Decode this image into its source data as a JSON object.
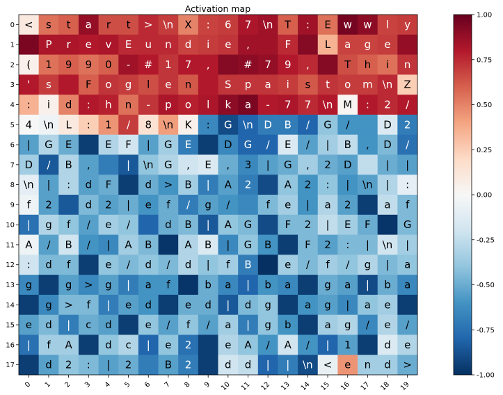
{
  "chart_data": {
    "type": "heatmap",
    "title": "Activation map",
    "xlabel": "",
    "ylabel": "",
    "x_ticks": [
      "0",
      "1",
      "2",
      "3",
      "4",
      "5",
      "6",
      "7",
      "8",
      "9",
      "10",
      "11",
      "12",
      "13",
      "14",
      "15",
      "16",
      "17",
      "18",
      "19"
    ],
    "y_ticks": [
      "0",
      "1",
      "2",
      "3",
      "4",
      "5",
      "6",
      "7",
      "8",
      "9",
      "10",
      "11",
      "12",
      "13",
      "14",
      "15",
      "16",
      "17"
    ],
    "x_tick_rotation_deg": 45,
    "colormap": "RdBu_r",
    "colorbar": {
      "vmin": -1.0,
      "vmax": 1.0,
      "ticks": [
        "1.00",
        "0.75",
        "0.50",
        "0.25",
        "0.00",
        "-0.25",
        "-0.50",
        "-0.75",
        "-1.00"
      ]
    },
    "cell_labels": [
      [
        "<",
        "s",
        "t",
        "a",
        "r",
        "t",
        ">",
        "\\n",
        "X",
        ":",
        "6",
        "7",
        "\\n",
        "T",
        ":",
        "E",
        "w",
        "w",
        "l",
        "y"
      ],
      [
        "",
        "P",
        "r",
        "e",
        "v",
        "E",
        "u",
        "n",
        "d",
        "i",
        "e",
        ",",
        "",
        "F",
        "",
        "L",
        "a",
        "g",
        "e",
        ""
      ],
      [
        "(",
        "1",
        "9",
        "9",
        "0",
        "-",
        "#",
        "1",
        "7",
        ",",
        "",
        "#",
        "7",
        "9",
        ",",
        "",
        "T",
        "h",
        "i",
        "n"
      ],
      [
        "'",
        "s",
        "",
        "F",
        "o",
        "g",
        "l",
        "e",
        "n",
        "",
        "S",
        "p",
        "a",
        "i",
        "s",
        "t",
        "o",
        "m",
        "\\n",
        "Z"
      ],
      [
        ":",
        "i",
        "d",
        ":",
        "h",
        "n",
        "-",
        "p",
        "o",
        "l",
        "k",
        "a",
        "-",
        "7",
        "7",
        "\\n",
        "M",
        ":",
        "2",
        "/"
      ],
      [
        "4",
        "\\n",
        "L",
        ":",
        "1",
        "/",
        "8",
        "\\n",
        "K",
        ":",
        "G",
        "\\n",
        "D",
        "B",
        "/",
        "G",
        "/",
        "",
        "D",
        "2"
      ],
      [
        "|",
        "G",
        "E",
        "",
        "E",
        "F",
        "|",
        "G",
        "E",
        "",
        "D",
        "G",
        "/",
        "E",
        "/",
        "|",
        "B",
        ",",
        "D",
        "/"
      ],
      [
        "D",
        "/",
        "B",
        ",",
        "",
        "|",
        "\\n",
        "G",
        ",",
        "E",
        ",",
        "3",
        "|",
        "G",
        ",",
        "2",
        "D",
        "",
        "|",
        "|"
      ],
      [
        "\\n",
        "|",
        ":",
        "d",
        "F",
        "",
        "d",
        ">",
        "B",
        "|",
        "A",
        "2",
        "",
        "A",
        "2",
        ":",
        "|",
        "\\n",
        "|",
        ":"
      ],
      [
        "f",
        "2",
        "",
        "d",
        "2",
        "|",
        "e",
        "f",
        "/",
        "g",
        "/",
        "",
        "f",
        "e",
        "|",
        "a",
        "2",
        "",
        "a",
        "f"
      ],
      [
        "|",
        "g",
        "f",
        "/",
        "e",
        "/",
        "",
        "d",
        "B",
        "|",
        "A",
        "G",
        "",
        "F",
        "2",
        "|",
        "E",
        "F",
        "",
        "G"
      ],
      [
        "A",
        "/",
        "B",
        "/",
        "|",
        "A",
        "B",
        "",
        "A",
        "B",
        "|",
        "G",
        "B",
        "",
        "F",
        "2",
        ":",
        "|",
        "\\n",
        "|"
      ],
      [
        ":",
        "d",
        "f",
        "",
        "e",
        "/",
        "d",
        "/",
        "d",
        "|",
        "f",
        "B",
        "",
        "e",
        "/",
        "f",
        "/",
        "g",
        "|",
        "a"
      ],
      [
        "g",
        "",
        "g",
        ">",
        "g",
        "|",
        "a",
        "f",
        "",
        "b",
        "a",
        "|",
        "b",
        "a",
        "",
        "g",
        "a",
        "|",
        "b",
        "a"
      ],
      [
        "",
        "g",
        ">",
        "f",
        "|",
        "e",
        "d",
        "",
        "e",
        "d",
        "|",
        "d",
        "g",
        "",
        "a",
        "g",
        "|",
        "a",
        "e",
        ""
      ],
      [
        "e",
        "d",
        "|",
        "c",
        "d",
        "",
        "e",
        "/",
        "f",
        "/",
        "a",
        "|",
        "g",
        "b",
        "",
        "a",
        "g",
        "/",
        "e",
        "/"
      ],
      [
        "|",
        "f",
        "A",
        "",
        "d",
        "c",
        "|",
        "e",
        "2",
        "",
        "e",
        "A",
        "/",
        "A",
        "/",
        "|",
        "1",
        "",
        "d",
        "e"
      ],
      [
        "",
        "d",
        "2",
        ":",
        "|",
        "2",
        "",
        "B",
        "2",
        "",
        "d",
        "d",
        "|",
        "|",
        "\\n",
        "<",
        "e",
        "n",
        "d",
        ">"
      ]
    ],
    "values": [
      [
        0.1,
        0.55,
        0.6,
        0.88,
        0.65,
        0.65,
        0.75,
        0.7,
        0.5,
        0.68,
        0.7,
        0.82,
        0.85,
        0.6,
        0.85,
        0.55,
        0.96,
        0.9,
        0.68,
        0.7
      ],
      [
        0.95,
        0.82,
        0.82,
        0.8,
        0.82,
        0.75,
        0.75,
        0.75,
        0.68,
        0.7,
        0.72,
        0.85,
        0.85,
        0.75,
        0.92,
        0.35,
        0.68,
        0.68,
        0.7,
        0.88
      ],
      [
        0.05,
        0.55,
        0.6,
        0.55,
        0.6,
        0.85,
        0.8,
        0.72,
        0.8,
        0.8,
        0.92,
        0.9,
        0.88,
        0.8,
        0.75,
        0.92,
        0.65,
        0.6,
        0.55,
        0.72
      ],
      [
        0.8,
        0.7,
        0.8,
        0.6,
        0.72,
        0.7,
        0.65,
        0.72,
        0.62,
        0.8,
        0.72,
        0.72,
        0.72,
        0.7,
        0.62,
        0.72,
        0.7,
        0.7,
        0.75,
        0.25
      ],
      [
        0.35,
        0.05,
        0.5,
        0.8,
        0.78,
        0.55,
        0.72,
        0.82,
        0.78,
        0.82,
        0.9,
        0.95,
        0.8,
        0.82,
        0.75,
        0.8,
        0.02,
        0.8,
        0.75,
        0.8
      ],
      [
        0.0,
        -0.05,
        0.1,
        0.25,
        0.45,
        0.7,
        0.15,
        0.42,
        0.05,
        -0.65,
        -0.9,
        -0.8,
        -0.7,
        -0.7,
        -0.8,
        -0.4,
        -0.6,
        -0.6,
        -0.15,
        -0.7
      ],
      [
        -0.55,
        -0.3,
        -0.5,
        -0.95,
        -0.3,
        -0.2,
        -0.55,
        -0.35,
        -0.7,
        -0.95,
        -0.65,
        -0.8,
        -0.8,
        -0.15,
        -0.55,
        -0.35,
        -0.25,
        -0.6,
        -0.45,
        -0.75
      ],
      [
        -0.35,
        -0.85,
        -0.3,
        -0.55,
        -0.7,
        -0.85,
        -0.4,
        -0.3,
        -0.2,
        -0.15,
        -0.5,
        -0.65,
        -0.55,
        -0.5,
        -0.35,
        -0.5,
        -0.55,
        -0.25,
        -0.5,
        -0.55
      ],
      [
        -0.1,
        -0.55,
        -0.3,
        -0.55,
        -0.5,
        -0.95,
        -0.5,
        -0.6,
        -0.35,
        -0.7,
        -0.55,
        -0.7,
        -0.9,
        -0.4,
        -0.6,
        -0.4,
        -0.6,
        -0.55,
        -0.3,
        -0.1
      ],
      [
        -0.05,
        -0.55,
        -0.85,
        -0.45,
        -0.55,
        -0.5,
        -0.6,
        -0.5,
        -0.7,
        -0.55,
        -0.6,
        -0.65,
        -0.45,
        -0.35,
        -0.6,
        -0.3,
        -0.55,
        -0.95,
        -0.25,
        -0.45
      ],
      [
        -0.75,
        -0.3,
        -0.4,
        -0.55,
        -0.35,
        -0.4,
        -0.8,
        -0.5,
        -0.45,
        -0.85,
        -0.4,
        -0.45,
        -0.9,
        -0.45,
        -0.45,
        -0.25,
        -0.35,
        -0.5,
        -0.98,
        -0.45
      ],
      [
        -0.05,
        -0.55,
        -0.2,
        -0.6,
        -0.65,
        -0.35,
        -0.45,
        -0.98,
        -0.3,
        -0.15,
        -0.65,
        -0.4,
        -0.6,
        -0.95,
        -0.45,
        -0.55,
        -0.45,
        -0.45,
        -0.2,
        -0.35
      ],
      [
        -0.2,
        -0.45,
        -0.45,
        -0.95,
        -0.4,
        -0.45,
        -0.4,
        -0.45,
        -0.3,
        -0.4,
        -0.35,
        -0.7,
        -1.0,
        -0.35,
        -0.45,
        -0.35,
        -0.4,
        -0.3,
        -0.45,
        -0.4
      ],
      [
        -0.65,
        -0.95,
        -0.55,
        -0.65,
        -0.55,
        -0.7,
        -0.6,
        -0.6,
        -0.98,
        -0.5,
        -0.65,
        -0.8,
        -0.6,
        -0.65,
        -0.95,
        -0.5,
        -0.55,
        -0.9,
        -0.5,
        -0.65
      ],
      [
        -0.95,
        -0.65,
        -0.45,
        -0.45,
        -0.7,
        -0.55,
        -0.6,
        -0.95,
        -0.5,
        -0.5,
        -0.85,
        -0.45,
        -0.4,
        -0.95,
        -0.6,
        -0.55,
        -0.65,
        -0.4,
        -0.35,
        -0.95
      ],
      [
        -0.55,
        -0.45,
        -0.7,
        -0.5,
        -0.55,
        -0.95,
        -0.4,
        -0.55,
        -0.4,
        -0.55,
        -0.35,
        -0.7,
        -0.4,
        -0.6,
        -0.95,
        -0.35,
        -0.3,
        -0.65,
        -0.3,
        -0.55
      ],
      [
        -0.75,
        -0.35,
        -0.35,
        -0.95,
        -0.4,
        -0.3,
        -0.8,
        -0.4,
        -0.75,
        -0.95,
        -0.3,
        -0.4,
        -0.6,
        -0.2,
        -0.6,
        -0.8,
        -0.55,
        -0.95,
        -0.15,
        -0.3
      ],
      [
        -0.95,
        -0.55,
        -0.4,
        -0.45,
        -0.55,
        -0.5,
        -0.7,
        -0.55,
        -0.7,
        -0.95,
        -0.2,
        -0.25,
        -0.8,
        -0.7,
        -0.9,
        -0.08,
        0.45,
        -0.35,
        -0.35,
        -0.5
      ]
    ]
  }
}
